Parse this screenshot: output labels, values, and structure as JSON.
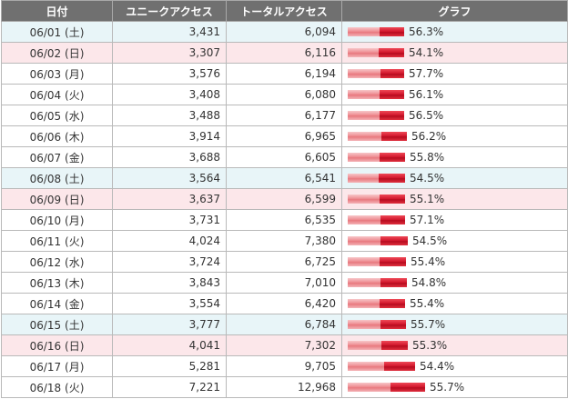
{
  "headers": {
    "date": "日付",
    "unique": "ユニークアクセス",
    "total": "トータルアクセス",
    "graph": "グラフ"
  },
  "colors": {
    "header_bg": "#707070",
    "saturday_bg": "#e8f5f8",
    "sunday_bg": "#fce7ea",
    "bar_light": "#ef8f94",
    "bar_dark": "#d0142a"
  },
  "rows": [
    {
      "date": "06/01 (土)",
      "day": "sat",
      "unique": "3,431",
      "total": "6,094",
      "pct": "56.3%"
    },
    {
      "date": "06/02 (日)",
      "day": "sun",
      "unique": "3,307",
      "total": "6,116",
      "pct": "54.1%"
    },
    {
      "date": "06/03 (月)",
      "day": "weekday",
      "unique": "3,576",
      "total": "6,194",
      "pct": "57.7%"
    },
    {
      "date": "06/04 (火)",
      "day": "weekday",
      "unique": "3,408",
      "total": "6,080",
      "pct": "56.1%"
    },
    {
      "date": "06/05 (水)",
      "day": "weekday",
      "unique": "3,488",
      "total": "6,177",
      "pct": "56.5%"
    },
    {
      "date": "06/06 (木)",
      "day": "weekday",
      "unique": "3,914",
      "total": "6,965",
      "pct": "56.2%"
    },
    {
      "date": "06/07 (金)",
      "day": "weekday",
      "unique": "3,688",
      "total": "6,605",
      "pct": "55.8%"
    },
    {
      "date": "06/08 (土)",
      "day": "sat",
      "unique": "3,564",
      "total": "6,541",
      "pct": "54.5%"
    },
    {
      "date": "06/09 (日)",
      "day": "sun",
      "unique": "3,637",
      "total": "6,599",
      "pct": "55.1%"
    },
    {
      "date": "06/10 (月)",
      "day": "weekday",
      "unique": "3,731",
      "total": "6,535",
      "pct": "57.1%"
    },
    {
      "date": "06/11 (火)",
      "day": "weekday",
      "unique": "4,024",
      "total": "7,380",
      "pct": "54.5%"
    },
    {
      "date": "06/12 (水)",
      "day": "weekday",
      "unique": "3,724",
      "total": "6,725",
      "pct": "55.4%"
    },
    {
      "date": "06/13 (木)",
      "day": "weekday",
      "unique": "3,843",
      "total": "7,010",
      "pct": "54.8%"
    },
    {
      "date": "06/14 (金)",
      "day": "weekday",
      "unique": "3,554",
      "total": "6,420",
      "pct": "55.4%"
    },
    {
      "date": "06/15 (土)",
      "day": "sat",
      "unique": "3,777",
      "total": "6,784",
      "pct": "55.7%"
    },
    {
      "date": "06/16 (日)",
      "day": "sun",
      "unique": "4,041",
      "total": "7,302",
      "pct": "55.3%"
    },
    {
      "date": "06/17 (月)",
      "day": "weekday",
      "unique": "5,281",
      "total": "9,705",
      "pct": "54.4%"
    },
    {
      "date": "06/18 (火)",
      "day": "weekday",
      "unique": "7,221",
      "total": "12,968",
      "pct": "55.7%"
    }
  ]
}
